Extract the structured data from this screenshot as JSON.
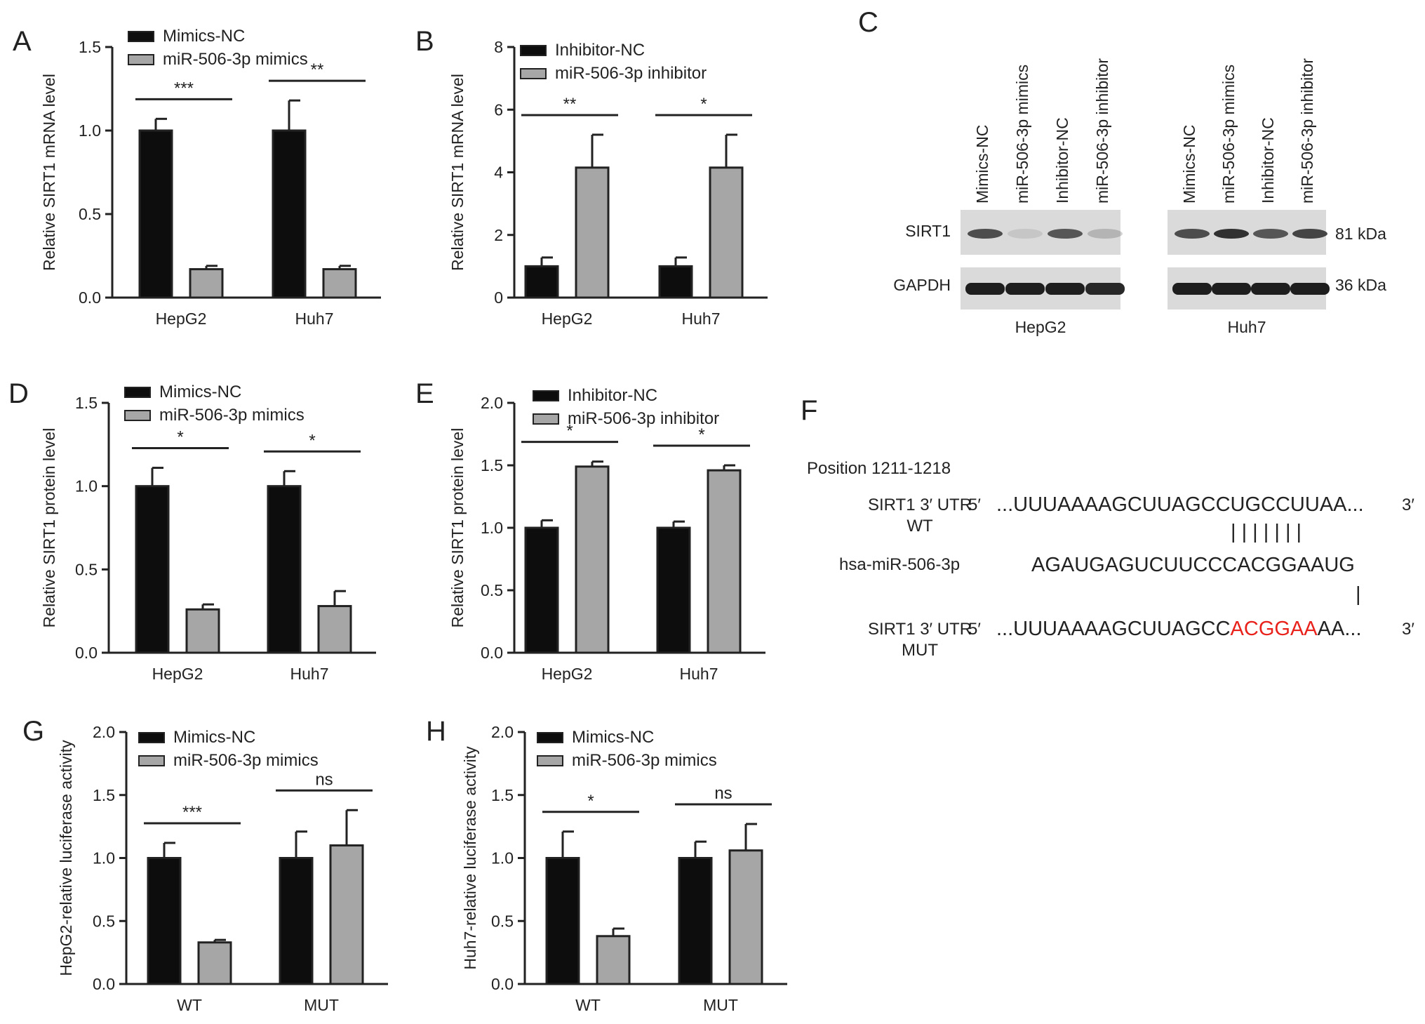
{
  "colors": {
    "ink": "#222222",
    "series_a": "#0d0d0d",
    "series_b": "#a6a6a6",
    "seed": "#e8211b",
    "band": "#1e1e1e"
  },
  "chart_data": [
    {
      "panel": "A",
      "type": "bar",
      "categories": [
        "HepG2",
        "Huh7"
      ],
      "ylabel": "Relative SIRT1 mRNA level",
      "ylim": [
        0,
        1.5
      ],
      "yticks": [
        0.0,
        0.5,
        1.0,
        1.5
      ],
      "tick_decimals": 1,
      "series": [
        {
          "name": "Mimics-NC",
          "values": [
            1.0,
            1.0
          ],
          "errors": [
            0.07,
            0.18
          ]
        },
        {
          "name": "miR-506-3p mimics",
          "values": [
            0.17,
            0.17
          ],
          "errors": [
            0.02,
            0.02
          ]
        }
      ],
      "significance": [
        "***",
        "**"
      ]
    },
    {
      "panel": "B",
      "type": "bar",
      "categories": [
        "HepG2",
        "Huh7"
      ],
      "ylabel": "Relative SIRT1 mRNA level",
      "ylim": [
        0,
        8
      ],
      "yticks": [
        0,
        2,
        4,
        6,
        8
      ],
      "tick_decimals": 0,
      "series": [
        {
          "name": "Inhibitor-NC",
          "values": [
            1.0,
            1.0
          ],
          "errors": [
            0.28,
            0.28
          ]
        },
        {
          "name": "miR-506-3p inhibitor",
          "values": [
            4.15,
            4.15
          ],
          "errors": [
            1.05,
            1.05
          ]
        }
      ],
      "significance": [
        "**",
        "*"
      ]
    },
    {
      "panel": "D",
      "type": "bar",
      "categories": [
        "HepG2",
        "Huh7"
      ],
      "ylabel": "Relative SIRT1 protein level",
      "ylim": [
        0,
        1.5
      ],
      "yticks": [
        0.0,
        0.5,
        1.0,
        1.5
      ],
      "tick_decimals": 1,
      "series": [
        {
          "name": "Mimics-NC",
          "values": [
            1.0,
            1.0
          ],
          "errors": [
            0.11,
            0.09
          ]
        },
        {
          "name": "miR-506-3p mimics",
          "values": [
            0.26,
            0.28
          ],
          "errors": [
            0.03,
            0.09
          ]
        }
      ],
      "significance": [
        "*",
        "*"
      ]
    },
    {
      "panel": "E",
      "type": "bar",
      "categories": [
        "HepG2",
        "Huh7"
      ],
      "ylabel": "Relative SIRT1 protein level",
      "ylim": [
        0,
        2.0
      ],
      "yticks": [
        0.0,
        0.5,
        1.0,
        1.5,
        2.0
      ],
      "tick_decimals": 1,
      "series": [
        {
          "name": "Inhibitor-NC",
          "values": [
            1.0,
            1.0
          ],
          "errors": [
            0.06,
            0.05
          ]
        },
        {
          "name": "miR-506-3p inhibitor",
          "values": [
            1.49,
            1.46
          ],
          "errors": [
            0.04,
            0.04
          ]
        }
      ],
      "significance": [
        "*",
        "*"
      ]
    },
    {
      "panel": "G",
      "type": "bar",
      "categories": [
        "WT",
        "MUT"
      ],
      "ylabel": "HepG2-relative luciferase activity",
      "ylim": [
        0,
        2.0
      ],
      "yticks": [
        0.0,
        0.5,
        1.0,
        1.5,
        2.0
      ],
      "tick_decimals": 1,
      "series": [
        {
          "name": "Mimics-NC",
          "values": [
            1.0,
            1.0
          ],
          "errors": [
            0.12,
            0.21
          ]
        },
        {
          "name": "miR-506-3p mimics",
          "values": [
            0.33,
            1.1
          ],
          "errors": [
            0.02,
            0.28
          ]
        }
      ],
      "significance": [
        "***",
        "ns"
      ]
    },
    {
      "panel": "H",
      "type": "bar",
      "categories": [
        "WT",
        "MUT"
      ],
      "ylabel": "Huh7-relative luciferase activity",
      "ylim": [
        0,
        2.0
      ],
      "yticks": [
        0.0,
        0.5,
        1.0,
        1.5,
        2.0
      ],
      "tick_decimals": 1,
      "series": [
        {
          "name": "Mimics-NC",
          "values": [
            1.0,
            1.0
          ],
          "errors": [
            0.21,
            0.13
          ]
        },
        {
          "name": "miR-506-3p mimics",
          "values": [
            0.38,
            1.06
          ],
          "errors": [
            0.06,
            0.21
          ]
        }
      ],
      "significance": [
        "*",
        "ns"
      ]
    }
  ],
  "western_blot": {
    "panel": "C",
    "lanes": [
      "Mimics-NC",
      "miR-506-3p mimics",
      "Inhibitor-NC",
      "miR-506-3p inhibitor"
    ],
    "rows": [
      {
        "label": "SIRT1",
        "size": "81 kDa"
      },
      {
        "label": "GAPDH",
        "size": "36 kDa"
      }
    ],
    "cell_lines": [
      "HepG2",
      "Huh7"
    ],
    "sirt1_intensity": [
      [
        0.75,
        0.1,
        0.7,
        0.2
      ],
      [
        0.75,
        0.9,
        0.7,
        0.8
      ]
    ],
    "gapdh_intensity": [
      [
        1.0,
        1.0,
        1.0,
        0.95
      ],
      [
        1.0,
        1.0,
        1.0,
        1.0
      ]
    ]
  },
  "sequence": {
    "panel": "F",
    "position": "Position 1211-1218",
    "wt_label": [
      "SIRT1 3′ UTR",
      "WT"
    ],
    "mirna_label": "hsa-miR-506-3p",
    "mut_label": [
      "SIRT1 3′ UTR",
      "MUT"
    ],
    "five_prime": "5′",
    "three_prime": "3′",
    "wt_seq": "...UUUAAAAGCUUAGCCUGCCUUAA...",
    "mirna_seq": "AGAUGAGUCUUCCCACGGAAUG",
    "mut_seq_prefix": "...UUUAAAAGCUUAGCC",
    "mut_seq_mutated": "ACGGAA",
    "mut_seq_suffix": "AA...",
    "pair_marks": "| | | | | | |",
    "single_pair_mark": "|"
  }
}
